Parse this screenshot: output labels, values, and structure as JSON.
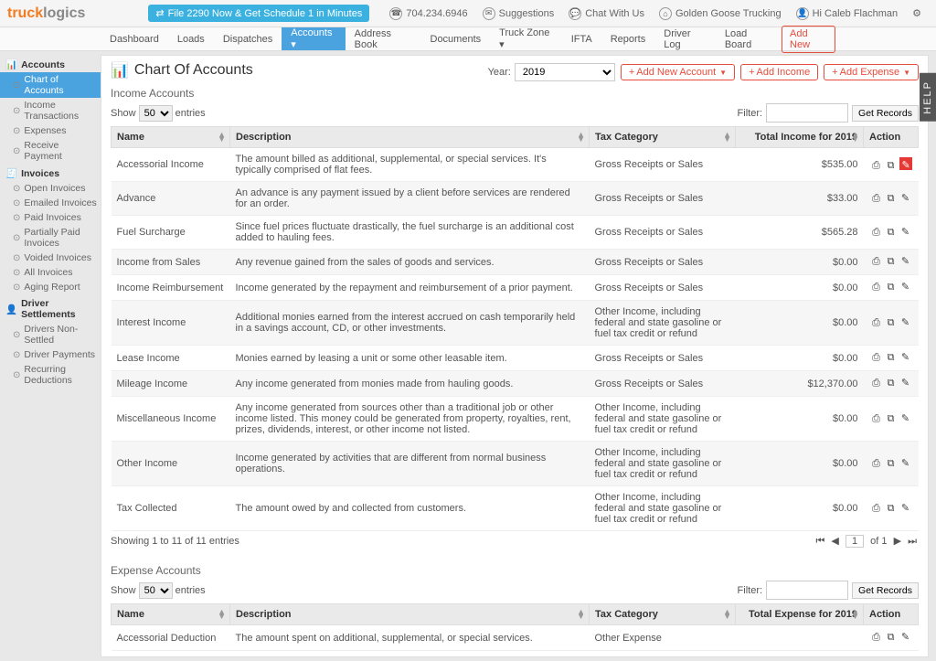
{
  "topbar": {
    "logo_orange": "truck",
    "logo_grey": "logics",
    "pill": "File 2290 Now & Get Schedule 1 in Minutes",
    "phone": "704.234.6946",
    "links": [
      "Suggestions",
      "Chat With Us",
      "Golden Goose Trucking",
      "Hi Caleb Flachman"
    ]
  },
  "nav": {
    "items": [
      "Dashboard",
      "Loads",
      "Dispatches",
      "Accounts",
      "Address Book",
      "Documents",
      "Truck Zone",
      "IFTA",
      "Reports",
      "Driver Log",
      "Load Board"
    ],
    "active_index": 3,
    "add_new": "Add New"
  },
  "sidebar": {
    "groups": [
      {
        "title": "Accounts",
        "icon": "chart",
        "items": [
          {
            "label": "Chart of Accounts",
            "active": true
          },
          {
            "label": "Income Transactions"
          },
          {
            "label": "Expenses"
          },
          {
            "label": "Receive Payment"
          }
        ]
      },
      {
        "title": "Invoices",
        "icon": "invoice",
        "items": [
          {
            "label": "Open Invoices"
          },
          {
            "label": "Emailed Invoices"
          },
          {
            "label": "Paid Invoices"
          },
          {
            "label": "Partially Paid Invoices"
          },
          {
            "label": "Voided Invoices"
          },
          {
            "label": "All Invoices"
          },
          {
            "label": "Aging Report"
          }
        ]
      },
      {
        "title": "Driver Settlements",
        "icon": "driver",
        "items": [
          {
            "label": "Drivers Non-Settled"
          },
          {
            "label": "Driver Payments"
          },
          {
            "label": "Recurring Deductions"
          }
        ]
      }
    ]
  },
  "page": {
    "title": "Chart Of Accounts",
    "year_label": "Year:",
    "year_value": "2019",
    "btn_add_account": "Add New Account",
    "btn_add_income": "Add Income",
    "btn_add_expense": "Add Expense",
    "help": "HELP"
  },
  "income": {
    "heading": "Income Accounts",
    "show_prefix": "Show",
    "show_count": "50",
    "show_suffix": "entries",
    "filter_label": "Filter:",
    "get_records": "Get Records",
    "total_header": "Total Income for 2019",
    "rows": [
      {
        "name": "Accessorial Income",
        "desc": "The amount billed as additional, supplemental, or special services. It's typically comprised of flat fees.",
        "tax": "Gross Receipts or Sales",
        "total": "$535.00",
        "hl": true
      },
      {
        "name": "Advance",
        "desc": "An advance is any payment issued by a client before services are rendered for an order.",
        "tax": "Gross Receipts or Sales",
        "total": "$33.00"
      },
      {
        "name": "Fuel Surcharge",
        "desc": "Since fuel prices fluctuate drastically, the fuel surcharge is an additional cost added to hauling fees.",
        "tax": "Gross Receipts or Sales",
        "total": "$565.28"
      },
      {
        "name": "Income from Sales",
        "desc": "Any revenue gained from the sales of goods and services.",
        "tax": "Gross Receipts or Sales",
        "total": "$0.00"
      },
      {
        "name": "Income Reimbursement",
        "desc": "Income generated by the repayment and reimbursement of a prior payment.",
        "tax": "Gross Receipts or Sales",
        "total": "$0.00"
      },
      {
        "name": "Interest Income",
        "desc": "Additional monies earned from the interest accrued on cash temporarily held in a savings account, CD, or other investments.",
        "tax": "Other Income, including federal and state gasoline or fuel tax credit or refund",
        "total": "$0.00"
      },
      {
        "name": "Lease Income",
        "desc": "Monies earned by leasing a unit or some other leasable item.",
        "tax": "Gross Receipts or Sales",
        "total": "$0.00"
      },
      {
        "name": "Mileage Income",
        "desc": "Any income generated from monies made from hauling goods.",
        "tax": "Gross Receipts or Sales",
        "total": "$12,370.00"
      },
      {
        "name": "Miscellaneous Income",
        "desc": "Any income generated from sources other than a traditional job or other income listed. This money could be generated from property, royalties, rent, prizes, dividends, interest, or other income not listed.",
        "tax": "Other Income, including federal and state gasoline or fuel tax credit or refund",
        "total": "$0.00"
      },
      {
        "name": "Other Income",
        "desc": "Income generated by activities that are different from normal business operations.",
        "tax": "Other Income, including federal and state gasoline or fuel tax credit or refund",
        "total": "$0.00"
      },
      {
        "name": "Tax Collected",
        "desc": "The amount owed by and collected from customers.",
        "tax": "Other Income, including federal and state gasoline or fuel tax credit or refund",
        "total": "$0.00"
      }
    ],
    "footer_text": "Showing 1 to 11 of 11 entries",
    "page_of": "of 1"
  },
  "expense": {
    "heading": "Expense Accounts",
    "total_header": "Total Expense for 2019",
    "rows": [
      {
        "name": "Accessorial Deduction",
        "desc": "The amount spent on additional, supplemental, or special services.",
        "tax": "Other Expense",
        "total": ""
      }
    ]
  },
  "columns": {
    "name": "Name",
    "desc": "Description",
    "tax": "Tax Category",
    "action": "Action"
  }
}
